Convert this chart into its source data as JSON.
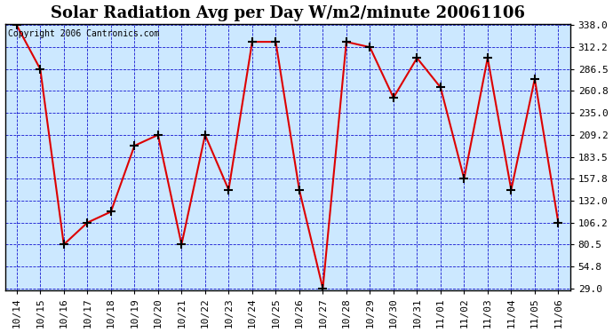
{
  "title": "Solar Radiation Avg per Day W/m2/minute 20061106",
  "copyright_text": "Copyright 2006 Cantronics.com",
  "x_labels": [
    "10/14",
    "10/15",
    "10/16",
    "10/17",
    "10/18",
    "10/19",
    "10/20",
    "10/21",
    "10/22",
    "10/23",
    "10/24",
    "10/25",
    "10/26",
    "10/27",
    "10/28",
    "10/29",
    "10/30",
    "10/31",
    "11/01",
    "11/02",
    "11/03",
    "11/04",
    "11/05",
    "11/06"
  ],
  "y_values": [
    338.0,
    286.5,
    80.5,
    106.2,
    119.0,
    196.5,
    209.2,
    80.5,
    209.2,
    144.8,
    318.5,
    318.5,
    144.8,
    29.0,
    318.5,
    312.2,
    253.0,
    299.5,
    265.0,
    157.8,
    299.5,
    144.8,
    275.0,
    106.2
  ],
  "line_color": "#dd0000",
  "marker_color": "#000000",
  "bg_color": "#ffffff",
  "plot_bg_color": "#cce8ff",
  "grid_color": "#0000cc",
  "ylim_min": 29.0,
  "ylim_max": 338.0,
  "ytick_values": [
    29.0,
    54.8,
    80.5,
    106.2,
    132.0,
    157.8,
    183.5,
    209.2,
    235.0,
    260.8,
    286.5,
    312.2,
    338.0
  ],
  "title_fontsize": 13,
  "tick_fontsize": 8,
  "copyright_fontsize": 7
}
